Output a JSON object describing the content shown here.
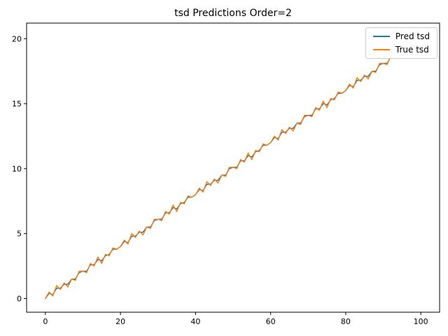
{
  "figure": {
    "background": "#ffffff"
  },
  "chart_data": {
    "type": "line",
    "title": "tsd Predictions Order=2",
    "xlabel": "",
    "ylabel": "",
    "xlim": [
      -5,
      105
    ],
    "ylim": [
      -1.05,
      21.2
    ],
    "xticks": [
      0,
      20,
      40,
      60,
      80,
      100
    ],
    "yticks": [
      0,
      5,
      10,
      15,
      20
    ],
    "grid": false,
    "legend": {
      "position": "upper right"
    },
    "x": [
      0,
      1,
      2,
      3,
      4,
      5,
      6,
      7,
      8,
      9,
      10,
      11,
      12,
      13,
      14,
      15,
      16,
      17,
      18,
      19,
      20,
      21,
      22,
      23,
      24,
      25,
      26,
      27,
      28,
      29,
      30,
      31,
      32,
      33,
      34,
      35,
      36,
      37,
      38,
      39,
      40,
      41,
      42,
      43,
      44,
      45,
      46,
      47,
      48,
      49,
      50,
      51,
      52,
      53,
      54,
      55,
      56,
      57,
      58,
      59,
      60,
      61,
      62,
      63,
      64,
      65,
      66,
      67,
      68,
      69,
      70,
      71,
      72,
      73,
      74,
      75,
      76,
      77,
      78,
      79,
      80,
      81,
      82,
      83,
      84,
      85,
      86,
      87,
      88,
      89,
      90,
      91,
      92,
      93,
      94,
      95,
      96,
      97,
      98,
      99
    ],
    "series": [
      {
        "name": "Pred tsd",
        "color": "#1f77b4",
        "values": [
          0.0,
          0.4,
          0.3,
          0.8,
          0.8,
          1.1,
          1.1,
          1.5,
          1.5,
          2.0,
          2.1,
          2.1,
          2.6,
          2.6,
          3.0,
          2.9,
          3.3,
          3.4,
          3.8,
          3.8,
          4.0,
          4.4,
          4.3,
          4.8,
          4.8,
          5.1,
          5.1,
          5.5,
          5.5,
          6.0,
          6.1,
          6.1,
          6.6,
          6.6,
          7.0,
          6.9,
          7.3,
          7.4,
          7.8,
          7.8,
          8.0,
          8.4,
          8.3,
          8.8,
          8.8,
          9.1,
          9.1,
          9.5,
          9.5,
          10.0,
          10.1,
          10.1,
          10.6,
          10.6,
          11.0,
          10.9,
          11.3,
          11.4,
          11.8,
          11.8,
          12.0,
          12.4,
          12.3,
          12.8,
          12.8,
          13.1,
          13.1,
          13.5,
          13.5,
          14.0,
          14.1,
          14.1,
          14.6,
          14.6,
          15.0,
          14.9,
          15.3,
          15.4,
          15.8,
          15.8,
          16.0,
          16.4,
          16.3,
          16.8,
          16.8,
          17.1,
          17.1,
          17.5,
          17.5,
          18.0,
          18.1,
          18.1,
          18.6,
          18.6,
          19.0,
          18.9,
          19.3,
          19.4,
          19.8,
          19.8
        ]
      },
      {
        "name": "True tsd",
        "color": "#ff7f0e",
        "values": [
          0.0,
          0.5,
          0.2,
          1.0,
          0.7,
          1.2,
          0.9,
          1.5,
          1.4,
          2.1,
          2.1,
          2.0,
          2.7,
          2.5,
          3.2,
          2.7,
          3.4,
          3.3,
          3.9,
          3.8,
          4.0,
          4.5,
          4.2,
          5.0,
          4.7,
          5.2,
          4.9,
          5.5,
          5.4,
          6.1,
          6.1,
          6.0,
          6.7,
          6.5,
          7.2,
          6.7,
          7.4,
          7.3,
          7.9,
          7.8,
          8.0,
          8.5,
          8.2,
          9.0,
          8.7,
          9.2,
          8.9,
          9.5,
          9.4,
          10.1,
          10.1,
          10.0,
          10.7,
          10.5,
          11.2,
          10.7,
          11.4,
          11.3,
          11.9,
          11.8,
          12.0,
          12.5,
          12.2,
          13.0,
          12.7,
          13.2,
          12.9,
          13.5,
          13.4,
          14.1,
          14.1,
          14.0,
          14.7,
          14.5,
          15.2,
          14.7,
          15.4,
          15.3,
          15.9,
          15.8,
          16.0,
          16.5,
          16.2,
          17.0,
          16.7,
          17.2,
          16.9,
          17.5,
          17.4,
          18.1,
          18.1,
          18.0,
          18.7,
          18.5,
          19.2,
          18.7,
          19.4,
          19.3,
          19.9,
          19.8
        ]
      }
    ]
  }
}
